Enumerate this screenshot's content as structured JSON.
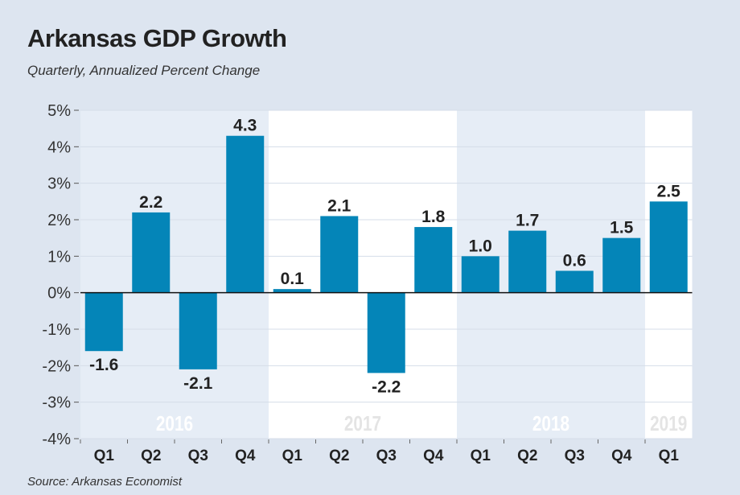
{
  "chart_data": {
    "type": "bar",
    "title": "Arkansas GDP Growth",
    "subtitle": "Quarterly, Annualized Percent Change",
    "source": "Source: Arkansas Economist",
    "categories": [
      "Q1",
      "Q2",
      "Q3",
      "Q4",
      "Q1",
      "Q2",
      "Q3",
      "Q4",
      "Q1",
      "Q2",
      "Q3",
      "Q4",
      "Q1"
    ],
    "years": [
      {
        "label": "2016",
        "quarters": 4
      },
      {
        "label": "2017",
        "quarters": 4
      },
      {
        "label": "2018",
        "quarters": 4
      },
      {
        "label": "2019",
        "quarters": 1
      }
    ],
    "values": [
      -1.6,
      2.2,
      -2.1,
      4.3,
      0.1,
      2.1,
      -2.2,
      1.8,
      1.0,
      1.7,
      0.6,
      1.5,
      2.5
    ],
    "data_labels": [
      "-1.6",
      "2.2",
      "-2.1",
      "4.3",
      "0.1",
      "2.1",
      "-2.2",
      "1.8",
      "1.0",
      "1.7",
      "0.6",
      "1.5",
      "2.5"
    ],
    "yticks": [
      "5%",
      "4%",
      "3%",
      "2%",
      "1%",
      "0%",
      "-1%",
      "-2%",
      "-3%",
      "-4%"
    ],
    "ylim": [
      -4,
      5
    ],
    "grid": true,
    "colors": {
      "bar": "#0485b8",
      "background": "#dde5f0",
      "band_light": "#e6edf6",
      "band_white": "#ffffff"
    }
  }
}
